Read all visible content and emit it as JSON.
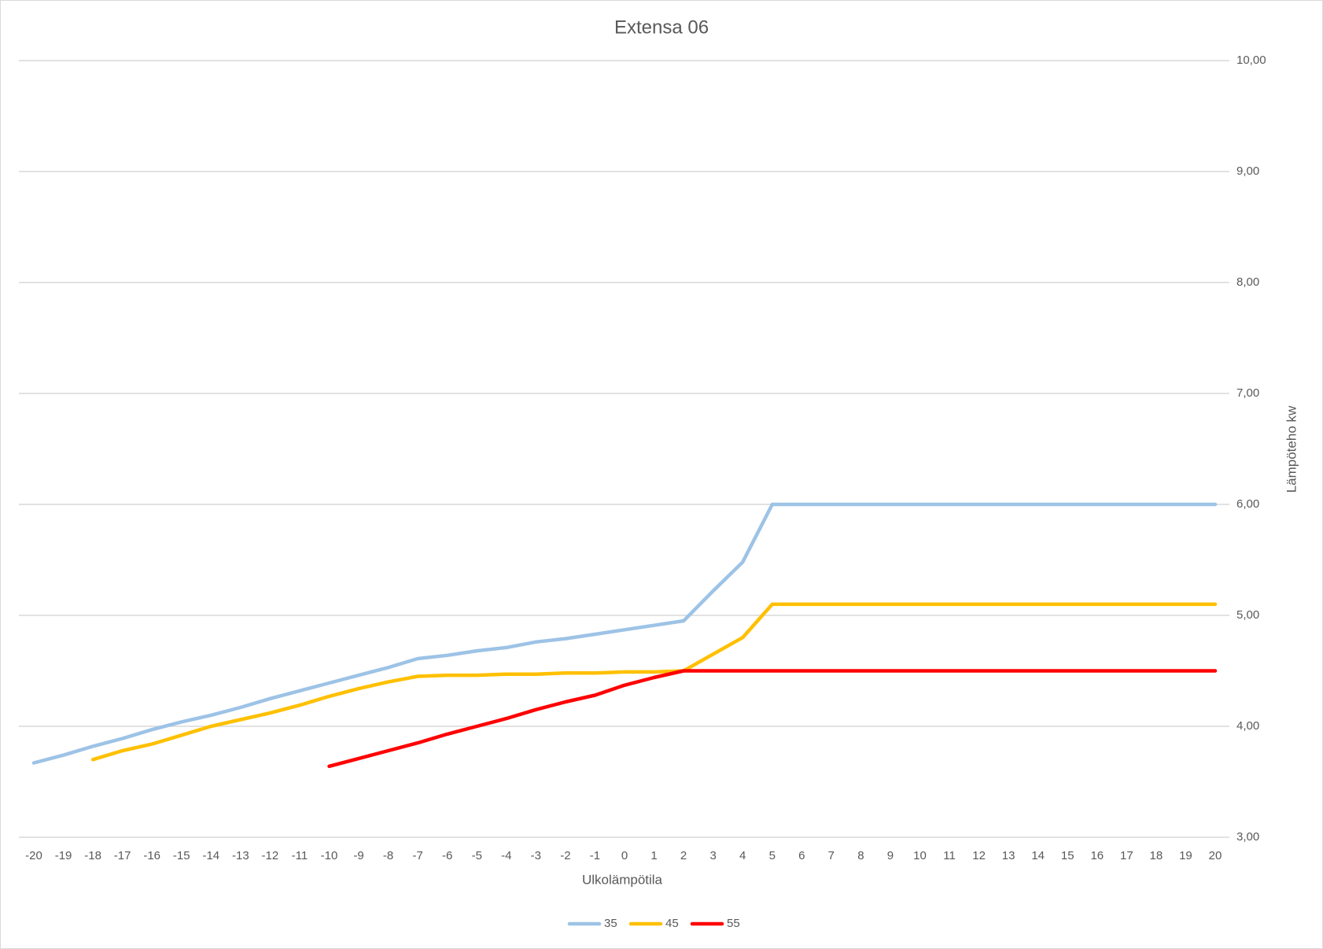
{
  "chart_data": {
    "type": "line",
    "title": "Extensa 06",
    "x_label": "Ulkolämpötila",
    "y_label": "Lämpöteho kw",
    "categories": [
      -20,
      -19,
      -18,
      -17,
      -16,
      -15,
      -14,
      -13,
      -12,
      -11,
      -10,
      -9,
      -8,
      -7,
      -6,
      -5,
      -4,
      -3,
      -2,
      -1,
      0,
      1,
      2,
      3,
      4,
      5,
      6,
      7,
      8,
      9,
      10,
      11,
      12,
      13,
      14,
      15,
      16,
      17,
      18,
      19,
      20
    ],
    "series": [
      {
        "name": "35",
        "color": "#9dc3e6",
        "values": [
          3.67,
          3.74,
          3.82,
          3.89,
          3.97,
          4.04,
          4.1,
          4.17,
          4.25,
          4.32,
          4.39,
          4.46,
          4.53,
          4.61,
          4.64,
          4.68,
          4.71,
          4.76,
          4.79,
          4.83,
          4.87,
          4.91,
          4.95,
          5.22,
          5.48,
          6.0,
          6.0,
          6.0,
          6.0,
          6.0,
          6.0,
          6.0,
          6.0,
          6.0,
          6.0,
          6.0,
          6.0,
          6.0,
          6.0,
          6.0,
          6.0
        ]
      },
      {
        "name": "45",
        "color": "#ffc000",
        "values": [
          null,
          null,
          3.7,
          3.78,
          3.84,
          3.92,
          4.0,
          4.06,
          4.12,
          4.19,
          4.27,
          4.34,
          4.4,
          4.45,
          4.46,
          4.46,
          4.47,
          4.47,
          4.48,
          4.48,
          4.49,
          4.49,
          4.5,
          4.65,
          4.8,
          5.1,
          5.1,
          5.1,
          5.1,
          5.1,
          5.1,
          5.1,
          5.1,
          5.1,
          5.1,
          5.1,
          5.1,
          5.1,
          5.1,
          5.1,
          5.1
        ]
      },
      {
        "name": "55",
        "color": "#ff0000",
        "values": [
          null,
          null,
          null,
          null,
          null,
          null,
          null,
          null,
          null,
          null,
          3.64,
          3.71,
          3.78,
          3.85,
          3.93,
          4.0,
          4.07,
          4.15,
          4.22,
          4.28,
          4.37,
          4.44,
          4.5,
          4.5,
          4.5,
          4.5,
          4.5,
          4.5,
          4.5,
          4.5,
          4.5,
          4.5,
          4.5,
          4.5,
          4.5,
          4.5,
          4.5,
          4.5,
          4.5,
          4.5,
          4.5
        ]
      }
    ],
    "ylim": [
      3,
      10
    ],
    "yticks": [
      {
        "value": 3,
        "label": "3,00"
      },
      {
        "value": 4,
        "label": "4,00"
      },
      {
        "value": 5,
        "label": "5,00"
      },
      {
        "value": 6,
        "label": "6,00"
      },
      {
        "value": 7,
        "label": "7,00"
      },
      {
        "value": 8,
        "label": "8,00"
      },
      {
        "value": 9,
        "label": "9,00"
      },
      {
        "value": 10,
        "label": "10,00"
      }
    ],
    "y_axis_side": "right",
    "grid": true,
    "legend": "bottom"
  }
}
